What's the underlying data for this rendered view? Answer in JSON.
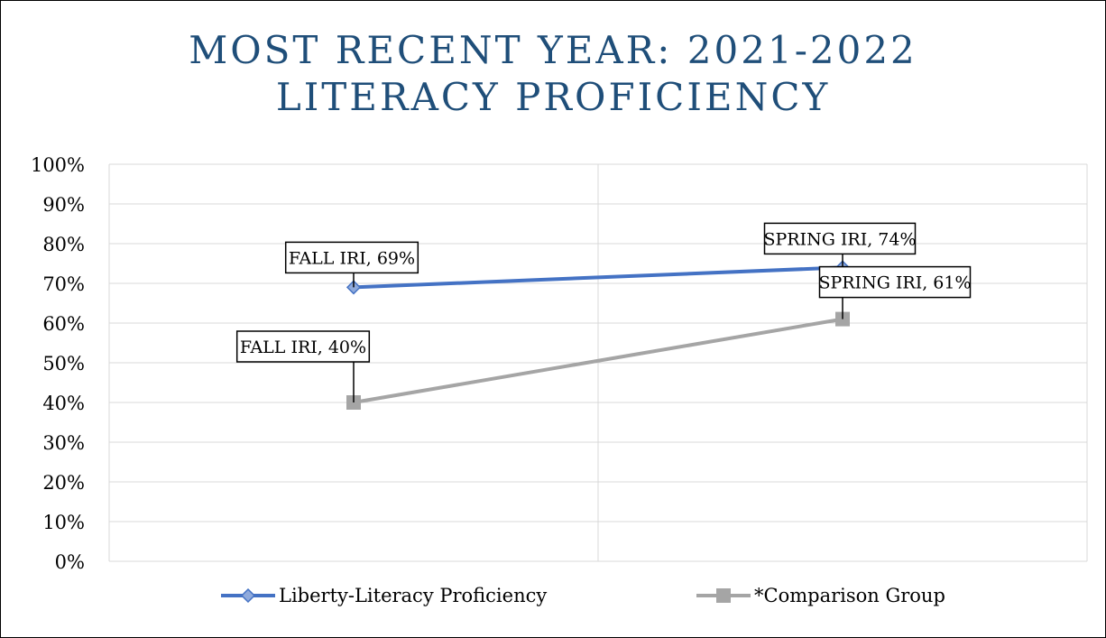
{
  "chart_data": {
    "type": "line",
    "title": [
      "MOST RECENT YEAR: 2021-2022",
      "LITERACY PROFICIENCY"
    ],
    "categories": [
      "FALL IRI",
      "SPRING IRI"
    ],
    "ylim": [
      0,
      100
    ],
    "y_ticks": [
      "0%",
      "10%",
      "20%",
      "30%",
      "40%",
      "50%",
      "60%",
      "70%",
      "80%",
      "90%",
      "100%"
    ],
    "grid": true,
    "legend_position": "bottom",
    "series": [
      {
        "name": "Liberty-Literacy Proficiency",
        "values": [
          69,
          74
        ],
        "color": "#4472c4",
        "marker": "diamond",
        "data_labels": [
          "FALL IRI, 69%",
          "SPRING IRI, 74%"
        ]
      },
      {
        "name": "*Comparison Group",
        "values": [
          40,
          61
        ],
        "color": "#a5a5a5",
        "marker": "square",
        "data_labels": [
          "FALL IRI, 40%",
          "SPRING IRI, 61%"
        ]
      }
    ]
  }
}
